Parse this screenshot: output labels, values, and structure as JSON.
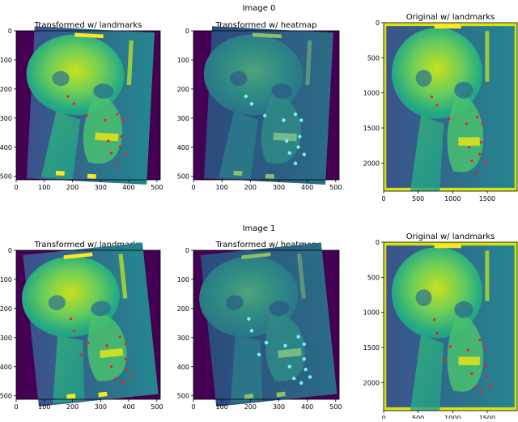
{
  "rows": [
    {
      "title": "Image 0",
      "panels": [
        {
          "title": "Transformed w/ landmarks",
          "xticks": [
            "0",
            "100",
            "200",
            "300",
            "400",
            "500"
          ],
          "yticks": [
            "0",
            "100",
            "200",
            "300",
            "400",
            "500"
          ],
          "marker_style": "landmarks"
        },
        {
          "title": "Transformed w/ heatmap",
          "xticks": [
            "0",
            "100",
            "200",
            "300",
            "400",
            "500"
          ],
          "yticks": [
            "0",
            "100",
            "200",
            "300",
            "400",
            "500"
          ],
          "marker_style": "heatmap"
        },
        {
          "title": "Original w/ landmarks",
          "xticks": [
            "0",
            "500",
            "1000",
            "1500"
          ],
          "yticks": [
            "0",
            "500",
            "1000",
            "1500",
            "2000"
          ],
          "marker_style": "landmarks"
        }
      ]
    },
    {
      "title": "Image 1",
      "panels": [
        {
          "title": "Transformed w/ landmarks",
          "xticks": [
            "0",
            "100",
            "200",
            "300",
            "400",
            "500"
          ],
          "yticks": [
            "0",
            "100",
            "200",
            "300",
            "400",
            "500"
          ],
          "marker_style": "landmarks"
        },
        {
          "title": "Transformed w/ heatmap",
          "xticks": [
            "0",
            "100",
            "200",
            "300",
            "400",
            "500"
          ],
          "yticks": [
            "0",
            "100",
            "200",
            "300",
            "400",
            "500"
          ],
          "marker_style": "heatmap"
        },
        {
          "title": "Original w/ landmarks",
          "xticks": [
            "0",
            "500",
            "1000",
            "1500"
          ],
          "yticks": [
            "0",
            "500",
            "1000",
            "1500",
            "2000"
          ],
          "marker_style": "landmarks"
        }
      ]
    }
  ],
  "colors": {
    "background": "#440154",
    "image_dark": "#3b518b",
    "image_mid": "#21908d",
    "image_light": "#5ec962",
    "image_bright": "#fde725",
    "landmark": "#ff1a1a",
    "heatmap_marker": "#7fffff"
  }
}
